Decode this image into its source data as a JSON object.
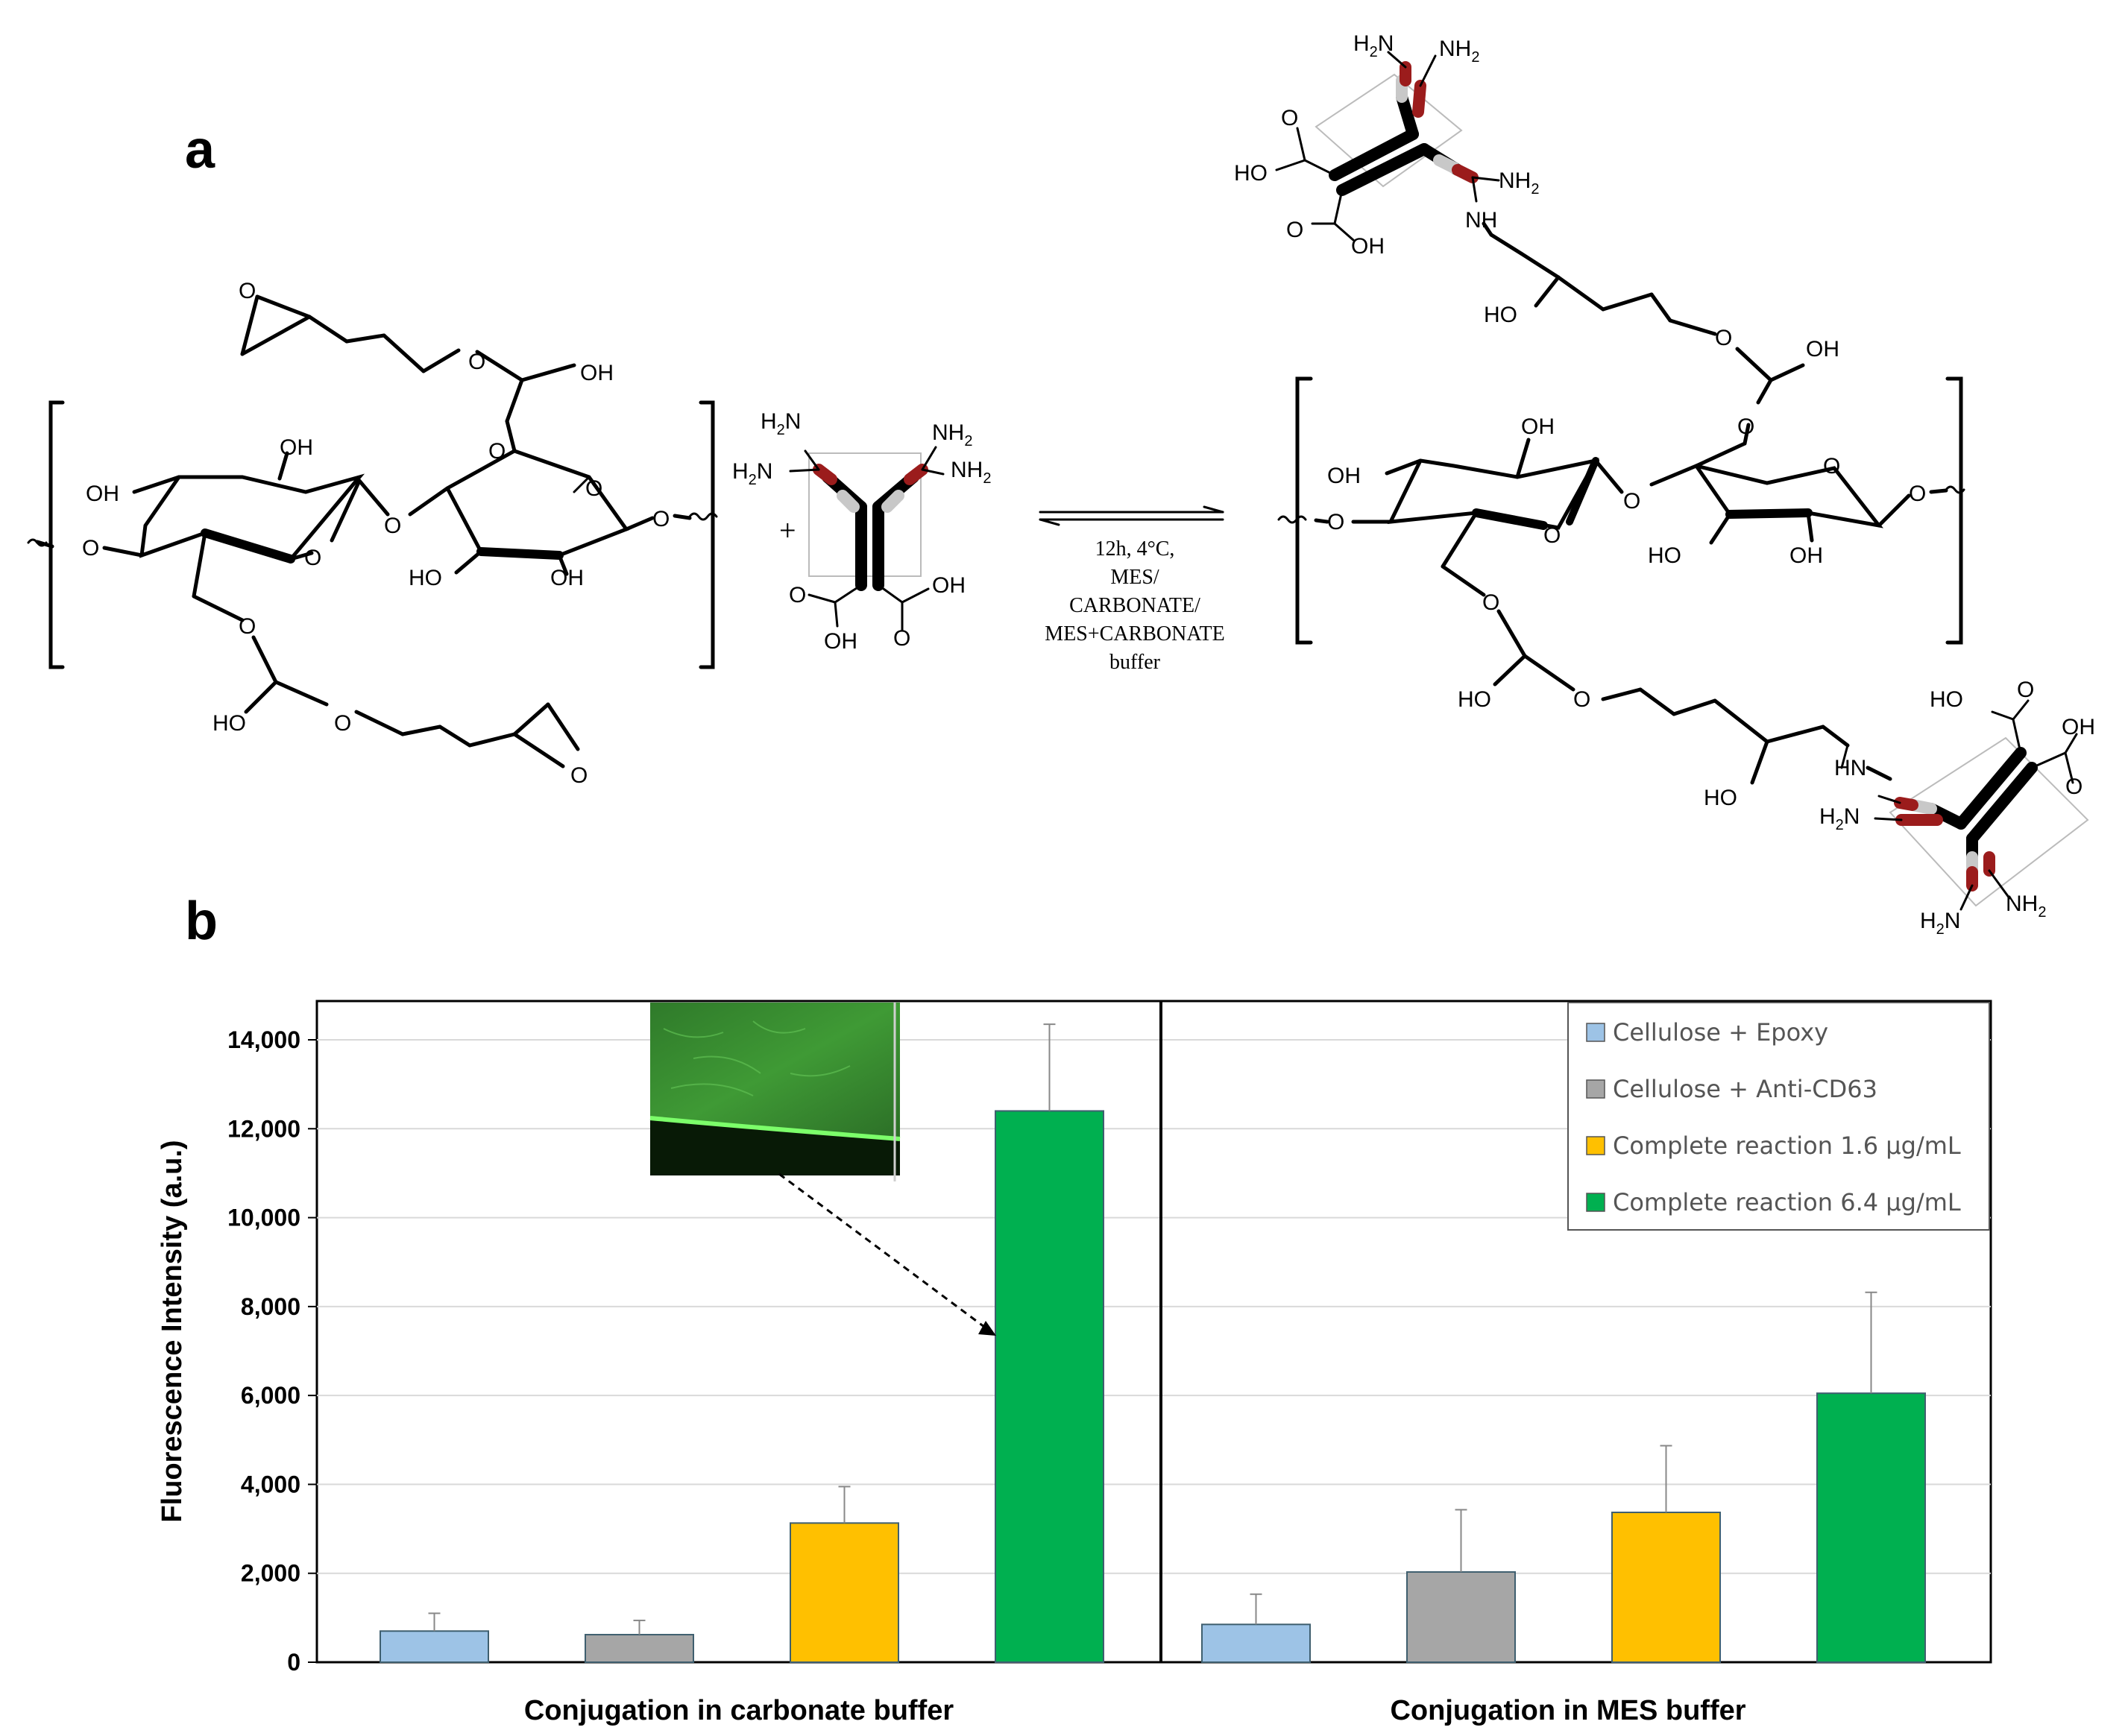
{
  "panel_labels": {
    "a": "a",
    "b": "b"
  },
  "scheme": {
    "reaction_conditions": [
      "12h, 4°C,",
      "MES/",
      "CARBONATE/",
      "MES+CARBONATE",
      "buffer"
    ],
    "plus_sign": "+",
    "labels": {
      "O": "O",
      "OH": "OH",
      "HO": "HO",
      "NH": "NH",
      "HN": "HN",
      "NH2": "NH",
      "H2N": "H",
      "sub2": "2",
      "N": "N"
    }
  },
  "inset": {
    "description_image": "fluorescence-micrograph-icon"
  },
  "chart_data": {
    "type": "bar",
    "ylabel": "Fluorescence Intensity (a.u.)",
    "xlabel": "",
    "ylim": [
      0,
      15000
    ],
    "yticks": [
      0,
      2000,
      4000,
      6000,
      8000,
      10000,
      12000,
      14000
    ],
    "ytick_labels": [
      "0",
      "2,000",
      "4,000",
      "6,000",
      "8,000",
      "10,000",
      "12,000",
      "14,000"
    ],
    "groups": [
      "Conjugation in carbonate buffer",
      "Conjugation in MES buffer"
    ],
    "series": [
      {
        "name": "Cellulose + Epoxy",
        "color": "#9dc3e6",
        "values": [
          700,
          850
        ],
        "errors": [
          400,
          680
        ]
      },
      {
        "name": "Cellulose + Anti-CD63",
        "color": "#a6a6a6",
        "values": [
          620,
          2030
        ],
        "errors": [
          320,
          1400
        ]
      },
      {
        "name": "Complete reaction 1.6 µg/mL",
        "color": "#ffc000",
        "values": [
          3130,
          3370
        ],
        "errors": [
          820,
          1500
        ]
      },
      {
        "name": "Complete reaction 6.4 µg/mL",
        "color": "#00b050",
        "values": [
          12400,
          6050
        ],
        "errors": [
          1950,
          2270
        ]
      }
    ],
    "grid": true,
    "legend_position": "top-right"
  }
}
